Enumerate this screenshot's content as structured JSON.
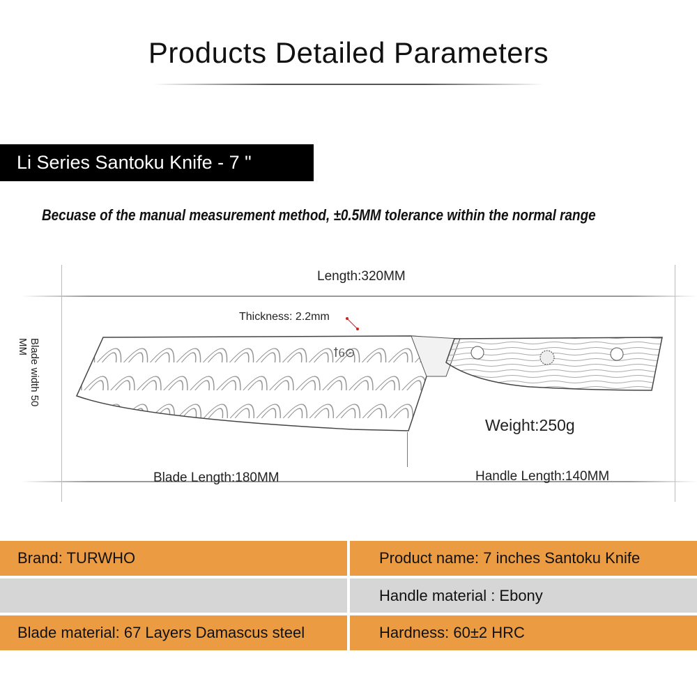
{
  "title": "Products Detailed Parameters",
  "product_label": "Li Series Santoku Knife - 7 \"",
  "note": "Becuase of the manual measurement method, ±0.5MM tolerance within the normal range",
  "dimensions": {
    "length": "Length:320MM",
    "thickness": "Thickness: 2.2mm",
    "blade_width": "Blade width 50 MM",
    "weight": "Weight:250g",
    "blade_length": "Blade Length:180MM",
    "handle_length": "Handle Length:140MM"
  },
  "table": [
    {
      "left": "Brand: TURWHO",
      "right": "Product name: 7 inches Santoku Knife",
      "color": "#eb9c43"
    },
    {
      "left": "",
      "right": "Handle material :  Ebony",
      "color": "#d6d6d6"
    },
    {
      "left": "Blade material: 67 Layers Damascus steel",
      "right": "Hardness: 60±2 HRC",
      "color": "#eb9c43"
    }
  ],
  "colors": {
    "accent": "#eb9c43",
    "row_gray": "#d6d6d6",
    "thickness_marker": "#d0201a"
  }
}
